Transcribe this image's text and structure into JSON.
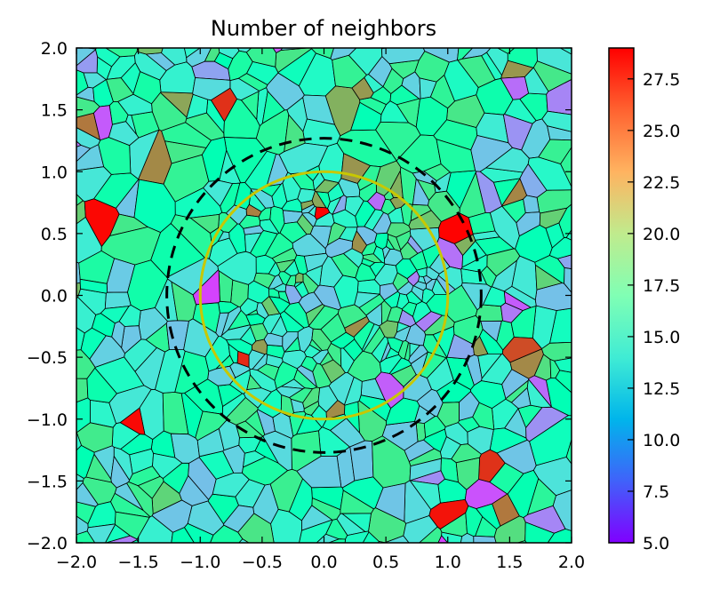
{
  "chart_data": {
    "type": "voronoi",
    "title": "Number of neighbors",
    "xlabel": "",
    "ylabel": "",
    "xlim": [
      -2.0,
      2.0
    ],
    "ylim": [
      -2.0,
      2.0
    ],
    "x_ticks": [
      -2.0,
      -1.5,
      -1.0,
      -0.5,
      0.0,
      0.5,
      1.0,
      1.5,
      2.0
    ],
    "x_tick_labels": [
      "−2.0",
      "−1.5",
      "−1.0",
      "−0.5",
      "0.0",
      "0.5",
      "1.0",
      "1.5",
      "2.0"
    ],
    "y_ticks": [
      2.0,
      1.5,
      1.0,
      0.5,
      0.0,
      -0.5,
      -1.0,
      -1.5,
      -2.0
    ],
    "y_tick_labels": [
      "2.0",
      "1.5",
      "1.0",
      "0.5",
      "0.0",
      "−0.5",
      "−1.0",
      "−1.5",
      "−2.0"
    ],
    "colorbar": {
      "cmap": "rainbow",
      "range": [
        5.0,
        29.0
      ],
      "ticks": [
        27.5,
        25.0,
        22.5,
        20.0,
        17.5,
        15.0,
        12.5,
        10.0,
        7.5,
        5.0
      ],
      "tick_labels": [
        "27.5",
        "25.0",
        "22.5",
        "20.0",
        "17.5",
        "15.0",
        "12.5",
        "10.0",
        "7.5",
        "5.0"
      ]
    },
    "overlays": [
      {
        "name": "solid-circle",
        "center": [
          0.0,
          0.0
        ],
        "radius": 1.0,
        "color": "#c8c800",
        "style": "solid"
      },
      {
        "name": "dashed-circle",
        "center": [
          0.0,
          0.0
        ],
        "radius": 1.27,
        "color": "#000000",
        "style": "dashed"
      }
    ],
    "cells": {
      "count": 700,
      "dense_region_radius": 1.0,
      "value_range": [
        5,
        29
      ],
      "typical_value": 16
    }
  }
}
